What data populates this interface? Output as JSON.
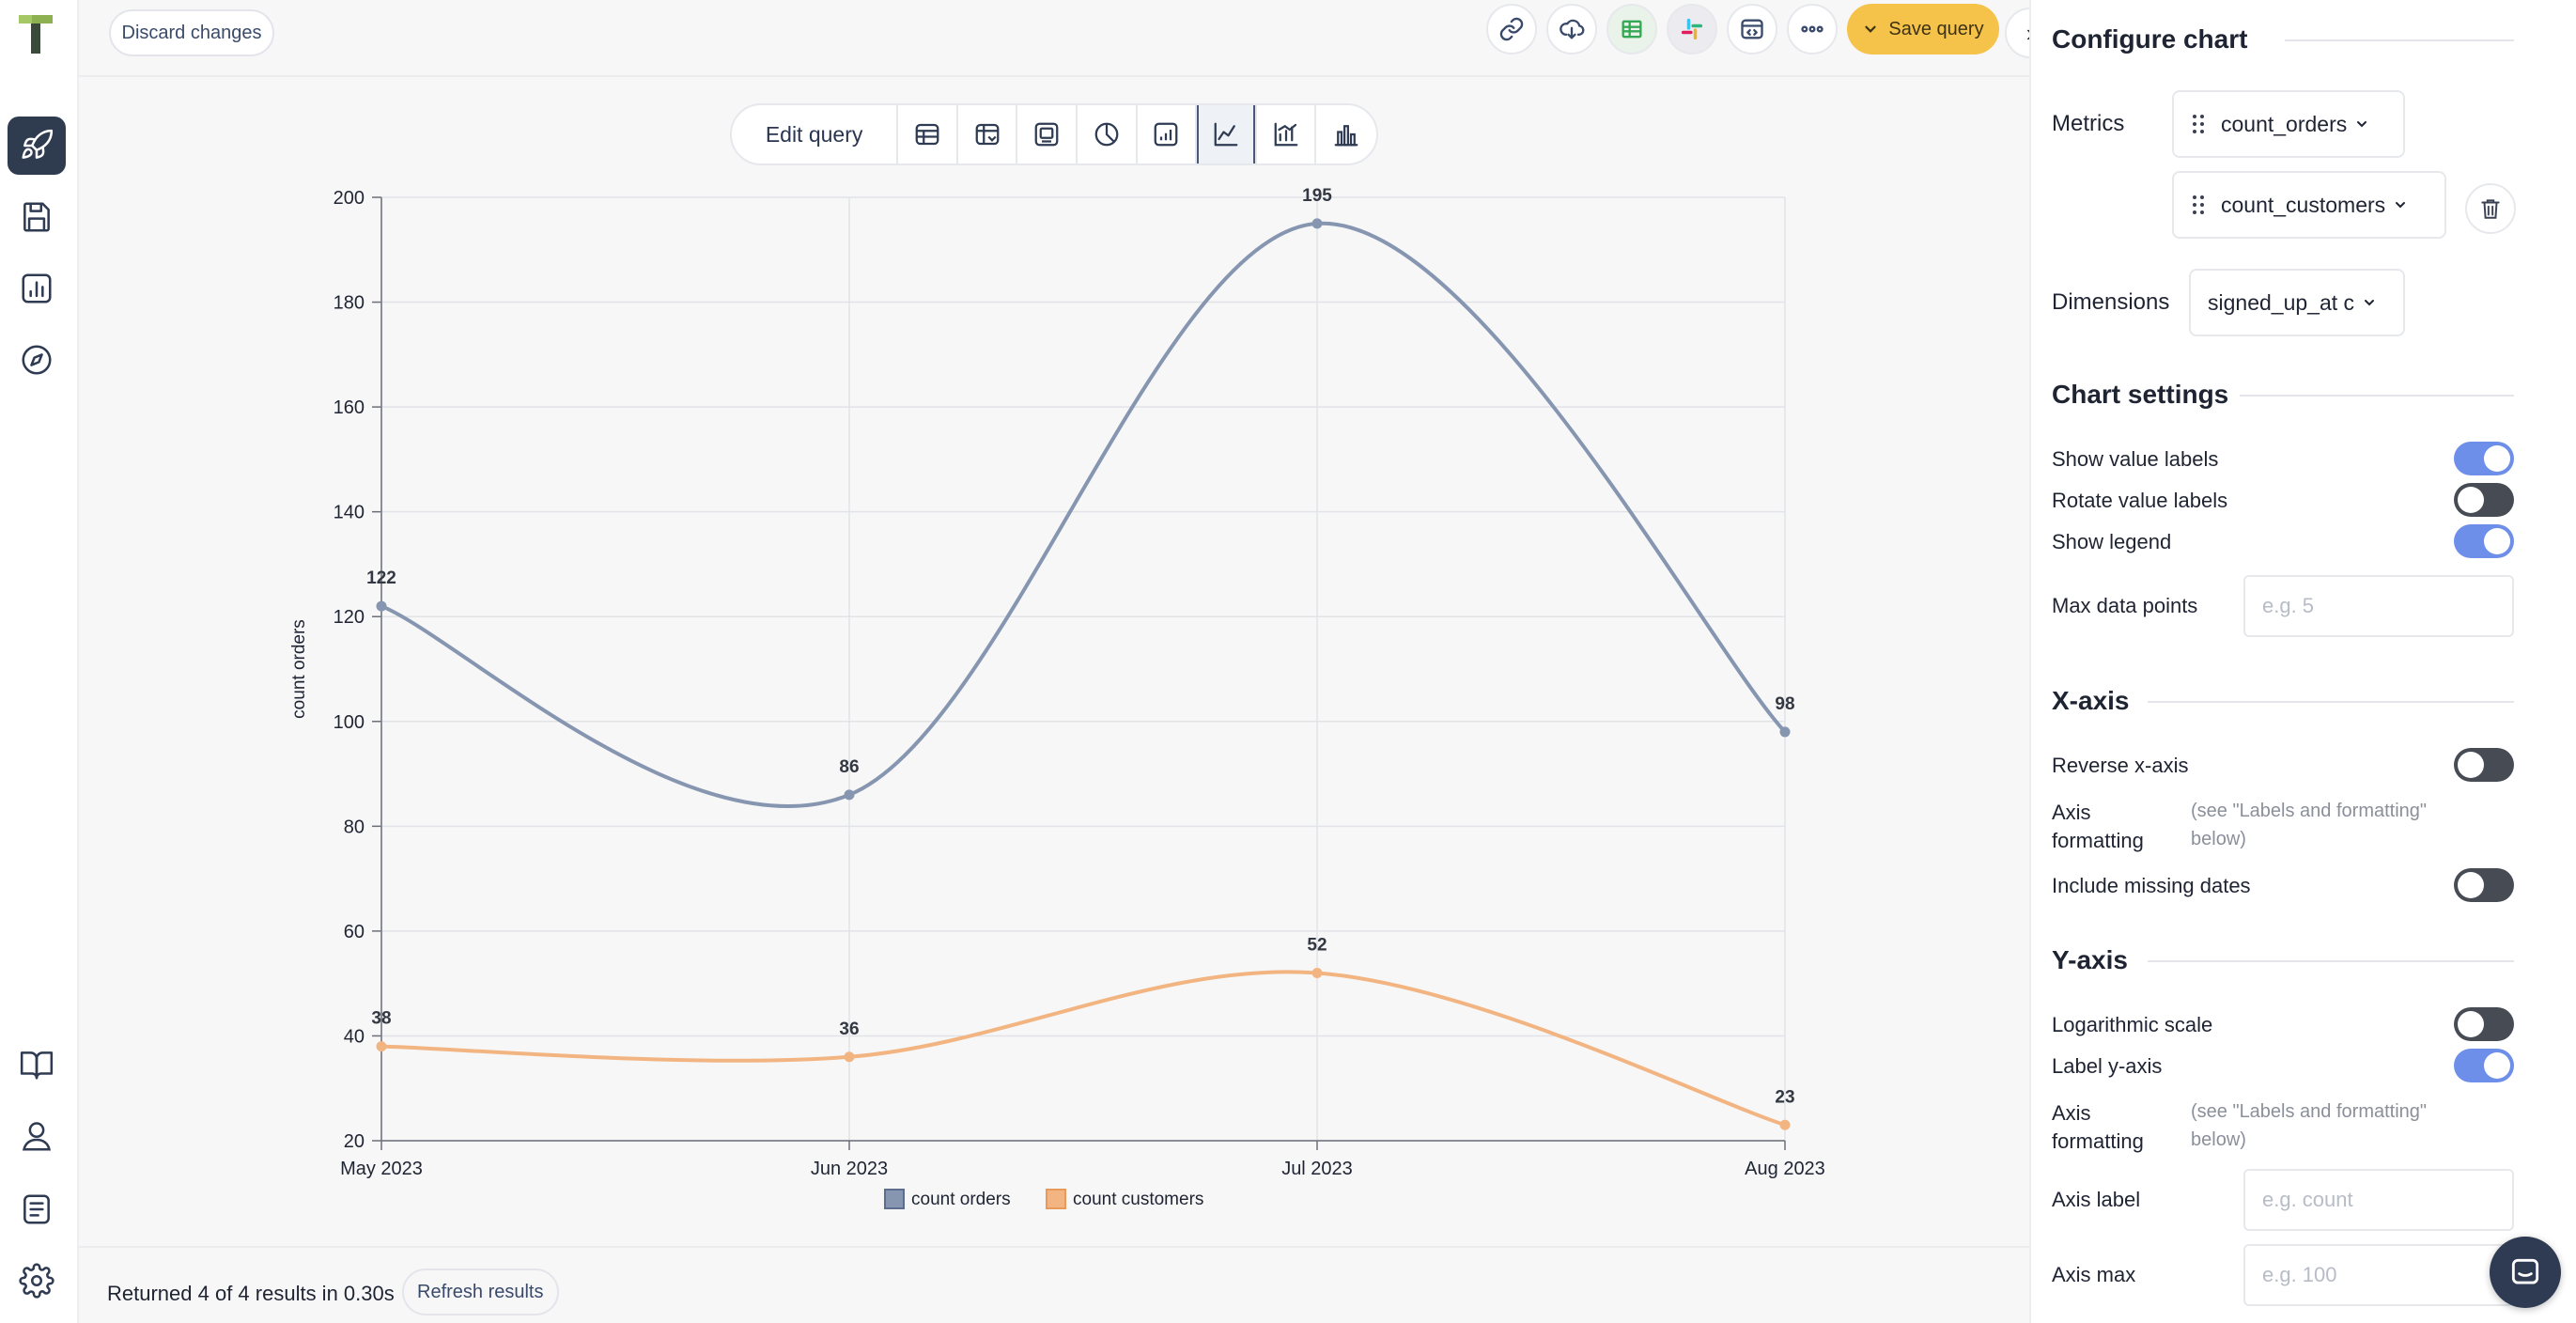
{
  "topbar": {
    "discard_label": "Discard changes",
    "save_label": "Save query",
    "icons": [
      "link-icon",
      "cloud-upload-icon",
      "google-sheets-icon",
      "slack-icon",
      "embed-code-icon",
      "more-icon"
    ]
  },
  "sidebar": {
    "items": [
      "rocket-icon",
      "save-icon",
      "dashboard-icon",
      "explore-icon",
      "docs-icon",
      "user-icon",
      "notes-icon",
      "settings-icon"
    ]
  },
  "viz_toolbar": {
    "edit_label": "Edit query",
    "icons": [
      "table-icon",
      "pivot-table-icon",
      "number-card-icon",
      "pie-chart-icon",
      "bar-line-icon",
      "line-chart-icon",
      "scatter-chart-icon",
      "bar-chart-icon"
    ],
    "active_index": 5
  },
  "chart_data": {
    "type": "line",
    "categories": [
      "May 2023",
      "Jun 2023",
      "Jul 2023",
      "Aug 2023"
    ],
    "series": [
      {
        "name": "count orders",
        "values": [
          122,
          86,
          195,
          98
        ],
        "color": "#8796b0"
      },
      {
        "name": "count customers",
        "values": [
          38,
          36,
          52,
          23
        ],
        "color": "#f2b582"
      }
    ],
    "ylabel": "count orders",
    "ylim": [
      20,
      200
    ],
    "yticks": [
      20,
      40,
      60,
      80,
      100,
      120,
      140,
      160,
      180,
      200
    ],
    "grid": true,
    "legend": "bottom-center",
    "smooth": true,
    "show_value_labels": true
  },
  "footer": {
    "results_text": "Returned 4 of 4 results in 0.30s",
    "refresh_label": "Refresh results"
  },
  "panel": {
    "configure_title": "Configure chart",
    "metrics_label": "Metrics",
    "metric_1": "count_orders",
    "metric_2": "count_customers",
    "dimensions_label": "Dimensions",
    "dimension_1": "signed_up_at c",
    "chart_settings_title": "Chart settings",
    "show_value_labels": "Show value labels",
    "rotate_value_labels": "Rotate value labels",
    "show_legend": "Show legend",
    "max_data_points": "Max data points",
    "max_data_points_placeholder": "e.g. 5",
    "xaxis_title": "X-axis",
    "reverse_xaxis": "Reverse x-axis",
    "axis_formatting": "Axis formatting",
    "axis_formatting_hint": "(see \"Labels and formatting\" below)",
    "include_missing_dates": "Include missing dates",
    "yaxis_title": "Y-axis",
    "log_scale": "Logarithmic scale",
    "label_yaxis": "Label y-axis",
    "axis_formatting_y": "Axis formatting",
    "axis_formatting_hint_y": "(see \"Labels and formatting\" below)",
    "axis_label": "Axis label",
    "axis_label_placeholder": "e.g. count",
    "axis_max": "Axis max",
    "axis_max_placeholder": "e.g. 100",
    "toggles": {
      "show_value_labels": true,
      "rotate_value_labels": false,
      "show_legend": true,
      "reverse_xaxis": false,
      "include_missing_dates": false,
      "log_scale": false,
      "label_yaxis": true
    }
  }
}
